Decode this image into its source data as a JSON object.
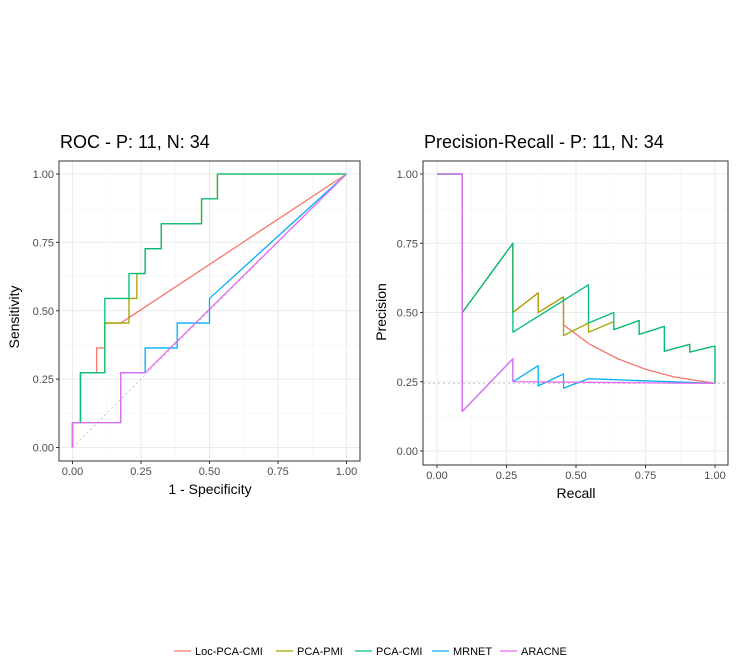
{
  "chart_data": [
    {
      "type": "line",
      "title": "ROC - P: 11, N: 34",
      "xlabel": "1 - Specificity",
      "ylabel": "Sensitivity",
      "xlim": [
        0,
        1
      ],
      "ylim": [
        0,
        1
      ],
      "xticks": [
        0,
        0.25,
        0.5,
        0.75,
        1
      ],
      "yticks": [
        0,
        0.25,
        0.5,
        0.75,
        1
      ],
      "xtick_labels": [
        "0.00",
        "0.25",
        "0.50",
        "0.75",
        "1.00"
      ],
      "ytick_labels": [
        "0.00",
        "0.25",
        "0.50",
        "0.75",
        "1.00"
      ],
      "reference_line": {
        "type": "diagonal",
        "style": "dotted"
      },
      "series": [
        {
          "name": "Loc-PCA-CMI",
          "color": "#F8766D",
          "points": [
            [
              0,
              0
            ],
            [
              0,
              0.091
            ],
            [
              0.029,
              0.091
            ],
            [
              0.029,
              0.273
            ],
            [
              0.088,
              0.273
            ],
            [
              0.088,
              0.364
            ],
            [
              0.118,
              0.364
            ],
            [
              0.118,
              0.455
            ],
            [
              0.176,
              0.455
            ],
            [
              1,
              1
            ]
          ]
        },
        {
          "name": "PCA-PMI",
          "color": "#A3A500",
          "points": [
            [
              0,
              0
            ],
            [
              0,
              0.091
            ],
            [
              0.029,
              0.091
            ],
            [
              0.029,
              0.273
            ],
            [
              0.118,
              0.273
            ],
            [
              0.118,
              0.455
            ],
            [
              0.206,
              0.455
            ],
            [
              0.206,
              0.545
            ],
            [
              0.235,
              0.545
            ],
            [
              0.235,
              0.636
            ],
            [
              0.265,
              0.636
            ],
            [
              0.265,
              0.727
            ],
            [
              0.324,
              0.727
            ],
            [
              0.324,
              0.818
            ],
            [
              0.471,
              0.818
            ],
            [
              0.471,
              0.909
            ],
            [
              0.529,
              0.909
            ],
            [
              0.529,
              1
            ],
            [
              1,
              1
            ]
          ]
        },
        {
          "name": "PCA-CMI",
          "color": "#00BF7D",
          "points": [
            [
              0,
              0
            ],
            [
              0,
              0.091
            ],
            [
              0.029,
              0.091
            ],
            [
              0.029,
              0.273
            ],
            [
              0.118,
              0.273
            ],
            [
              0.118,
              0.545
            ],
            [
              0.206,
              0.545
            ],
            [
              0.206,
              0.636
            ],
            [
              0.265,
              0.636
            ],
            [
              0.265,
              0.727
            ],
            [
              0.324,
              0.727
            ],
            [
              0.324,
              0.818
            ],
            [
              0.471,
              0.818
            ],
            [
              0.471,
              0.909
            ],
            [
              0.529,
              0.909
            ],
            [
              0.529,
              1
            ],
            [
              1,
              1
            ]
          ]
        },
        {
          "name": "MRNET",
          "color": "#00B0F6",
          "points": [
            [
              0,
              0
            ],
            [
              0,
              0.091
            ],
            [
              0.176,
              0.091
            ],
            [
              0.176,
              0.273
            ],
            [
              0.265,
              0.273
            ],
            [
              0.265,
              0.364
            ],
            [
              0.382,
              0.364
            ],
            [
              0.382,
              0.455
            ],
            [
              0.5,
              0.455
            ],
            [
              0.5,
              0.545
            ],
            [
              1,
              1
            ]
          ]
        },
        {
          "name": "ARACNE",
          "color": "#E76BF3",
          "points": [
            [
              0,
              0
            ],
            [
              0,
              0.091
            ],
            [
              0.176,
              0.091
            ],
            [
              0.176,
              0.273
            ],
            [
              0.265,
              0.273
            ],
            [
              1,
              1
            ]
          ]
        }
      ]
    },
    {
      "type": "line",
      "title": "Precision-Recall - P: 11, N: 34",
      "xlabel": "Recall",
      "ylabel": "Precision",
      "xlim": [
        0,
        1
      ],
      "ylim": [
        0,
        1
      ],
      "xticks": [
        0,
        0.25,
        0.5,
        0.75,
        1
      ],
      "yticks": [
        0,
        0.25,
        0.5,
        0.75,
        1
      ],
      "xtick_labels": [
        "0.00",
        "0.25",
        "0.50",
        "0.75",
        "1.00"
      ],
      "ytick_labels": [
        "0.00",
        "0.25",
        "0.50",
        "0.75",
        "1.00"
      ],
      "reference_line": {
        "type": "horizontal",
        "y": 0.244,
        "style": "dotted"
      },
      "series": [
        {
          "name": "Loc-PCA-CMI",
          "color": "#F8766D",
          "segments": [
            [
              [
                0,
                1
              ],
              [
                0.091,
                1
              ],
              [
                0.091,
                0.5
              ],
              [
                0.273,
                0.75
              ],
              [
                0.273,
                0.5
              ],
              [
                0.364,
                0.571
              ],
              [
                0.364,
                0.5
              ],
              [
                0.455,
                0.556
              ],
              [
                0.455,
                0.455
              ],
              [
                0.55,
                0.385
              ],
              [
                0.65,
                0.333
              ],
              [
                0.75,
                0.295
              ],
              [
                0.85,
                0.268
              ],
              [
                1,
                0.244
              ]
            ]
          ]
        },
        {
          "name": "PCA-PMI",
          "color": "#A3A500",
          "segments": [
            [
              [
                0,
                1
              ],
              [
                0.091,
                1
              ],
              [
                0.091,
                0.5
              ],
              [
                0.273,
                0.75
              ],
              [
                0.273,
                0.5
              ],
              [
                0.364,
                0.571
              ],
              [
                0.364,
                0.5
              ],
              [
                0.455,
                0.556
              ],
              [
                0.455,
                0.417
              ],
              [
                0.545,
                0.462
              ],
              [
                0.545,
                0.429
              ],
              [
                0.636,
                0.467
              ],
              [
                0.636,
                0.438
              ],
              [
                0.727,
                0.471
              ],
              [
                0.727,
                0.421
              ],
              [
                0.818,
                0.45
              ],
              [
                0.818,
                0.36
              ],
              [
                0.909,
                0.385
              ],
              [
                0.909,
                0.357
              ],
              [
                1,
                0.379
              ],
              [
                1,
                0.244
              ]
            ]
          ]
        },
        {
          "name": "PCA-CMI",
          "color": "#00BF7D",
          "segments": [
            [
              [
                0,
                1
              ],
              [
                0.091,
                1
              ],
              [
                0.091,
                0.5
              ],
              [
                0.273,
                0.75
              ],
              [
                0.273,
                0.429
              ],
              [
                0.545,
                0.6
              ],
              [
                0.545,
                0.462
              ],
              [
                0.636,
                0.5
              ],
              [
                0.636,
                0.438
              ],
              [
                0.727,
                0.471
              ],
              [
                0.727,
                0.421
              ],
              [
                0.818,
                0.45
              ],
              [
                0.818,
                0.36
              ],
              [
                0.909,
                0.385
              ],
              [
                0.909,
                0.357
              ],
              [
                1,
                0.379
              ],
              [
                1,
                0.244
              ]
            ]
          ]
        },
        {
          "name": "MRNET",
          "color": "#00B0F6",
          "segments": [
            [
              [
                0,
                1
              ],
              [
                0.091,
                1
              ],
              [
                0.091,
                0.143
              ],
              [
                0.273,
                0.333
              ],
              [
                0.273,
                0.25
              ],
              [
                0.364,
                0.308
              ],
              [
                0.364,
                0.235
              ],
              [
                0.455,
                0.278
              ],
              [
                0.455,
                0.227
              ],
              [
                0.545,
                0.261
              ],
              [
                1,
                0.244
              ]
            ]
          ]
        },
        {
          "name": "ARACNE",
          "color": "#E76BF3",
          "segments": [
            [
              [
                0,
                1
              ],
              [
                0.091,
                1
              ],
              [
                0.091,
                0.143
              ],
              [
                0.273,
                0.333
              ],
              [
                0.273,
                0.25
              ],
              [
                1,
                0.244
              ]
            ]
          ]
        }
      ]
    }
  ],
  "legend": {
    "position": "bottom",
    "items": [
      {
        "label": "Loc-PCA-CMI",
        "color": "#F8766D"
      },
      {
        "label": "PCA-PMI",
        "color": "#A3A500"
      },
      {
        "label": "PCA-CMI",
        "color": "#00BF7D"
      },
      {
        "label": "MRNET",
        "color": "#00B0F6"
      },
      {
        "label": "ARACNE",
        "color": "#E76BF3"
      }
    ]
  }
}
